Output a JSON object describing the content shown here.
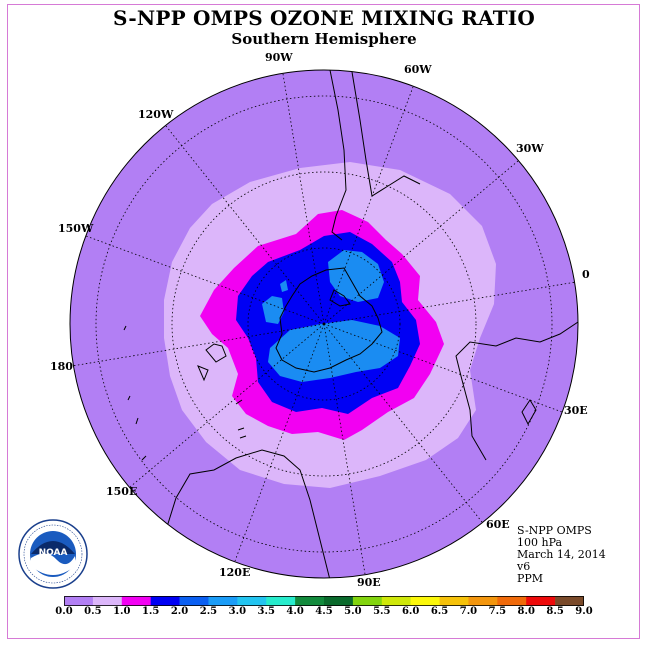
{
  "title": "S-NPP OMPS OZONE MIXING RATIO",
  "subtitle": "Southern Hemisphere",
  "longitude_labels": [
    "90W",
    "60W",
    "30W",
    "0",
    "30E",
    "60E",
    "90E",
    "120E",
    "150E",
    "180",
    "150W",
    "120W"
  ],
  "info": {
    "instrument": "S-NPP OMPS",
    "pressure": "100 hPa",
    "date": "March 14, 2014",
    "version": "v6",
    "units": "PPM"
  },
  "logo": {
    "text": "NOAA",
    "ring_text": "NATIONAL OCEANIC AND ATMOSPHERIC ADMINISTRATION · U.S. DEPARTMENT OF COMMERCE",
    "icon": "noaa-logo-icon"
  },
  "colorbar": {
    "ticks": [
      "0.0",
      "0.5",
      "1.0",
      "1.5",
      "2.0",
      "2.5",
      "3.0",
      "3.5",
      "4.0",
      "4.5",
      "5.0",
      "5.5",
      "6.0",
      "6.5",
      "7.0",
      "7.5",
      "8.0",
      "8.5",
      "9.0"
    ],
    "colors": [
      "#b27ff4",
      "#dcb6fa",
      "#f200f2",
      "#0000f4",
      "#0a5ff2",
      "#1a9cf7",
      "#22c4f0",
      "#27eccc",
      "#128a3c",
      "#0a6a2c",
      "#82d40e",
      "#cfe80a",
      "#fcf80a",
      "#f6c20a",
      "#f3960e",
      "#f06a0a",
      "#ee0a0a",
      "#7a4a2a"
    ]
  },
  "field_levels": {
    "outer_ring": "#b27ff4",
    "level_0_5": "#dcb6fa",
    "level_1_0": "#f200f2",
    "level_1_5": "#0000f4",
    "level_2_0": "#1a8cf2"
  }
}
